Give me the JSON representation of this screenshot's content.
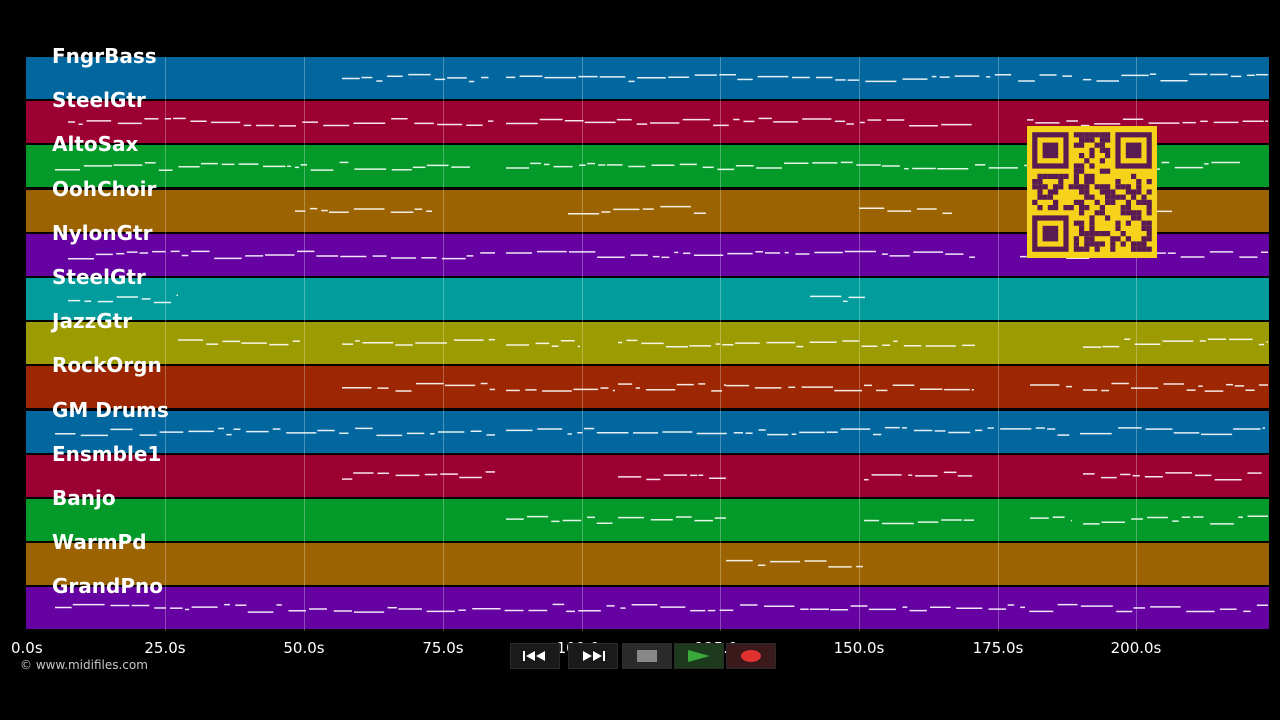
{
  "tracks": [
    {
      "name": "FngrBass",
      "color": "#02679e"
    },
    {
      "name": "SteelGtr",
      "color": "#9c0033"
    },
    {
      "name": "AltoSax",
      "color": "#039a2a"
    },
    {
      "name": "OohChoir",
      "color": "#9c6302"
    },
    {
      "name": "NylonGtr",
      "color": "#6702a2"
    },
    {
      "name": "SteelGtr",
      "color": "#029c9c"
    },
    {
      "name": "JazzGtr",
      "color": "#9c9c02"
    },
    {
      "name": "RockOrgn",
      "color": "#9c2702"
    },
    {
      "name": "GM Drums",
      "color": "#02679e"
    },
    {
      "name": "Ensmble1",
      "color": "#9c0033"
    },
    {
      "name": "Banjo",
      "color": "#039a2a"
    },
    {
      "name": "WarmPd",
      "color": "#9c6302"
    },
    {
      "name": "GrandPno",
      "color": "#6702a2"
    }
  ],
  "time_axis": {
    "ticks": [
      "0.0s",
      "25.0s",
      "50.0s",
      "75.0s",
      "100.0s",
      "125.0s",
      "150.0s",
      "175.0s",
      "200.0s"
    ]
  },
  "footer": {
    "copyright": "© www.midifiles.com"
  },
  "controls": {
    "rewind_icon": "rewind-icon",
    "fast_forward_icon": "fast-forward-icon",
    "stop_icon": "stop-icon",
    "play_icon": "play-icon",
    "record_icon": "record-icon",
    "play_color": "#3aa83a",
    "record_color": "#e03030"
  },
  "qr_code": {
    "icon": "qr-code-icon",
    "color": "#f6d31a"
  }
}
